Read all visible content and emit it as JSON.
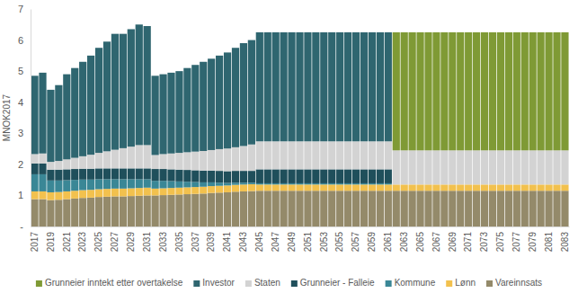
{
  "chart_data": {
    "type": "bar",
    "stacked": true,
    "y_label": "MNOK2017",
    "legend": "bottom",
    "grid": false,
    "ylim": [
      0,
      7
    ],
    "yticks": [
      {
        "value": 0,
        "label": "-"
      },
      1,
      2,
      3,
      4,
      5,
      6,
      7
    ],
    "categories": [
      "2017",
      null,
      "2019",
      null,
      "2021",
      null,
      "2023",
      null,
      "2025",
      null,
      "2027",
      null,
      "2029",
      null,
      "2031",
      null,
      "2033",
      null,
      "2035",
      null,
      "2037",
      null,
      "2039",
      null,
      "2041",
      null,
      "2043",
      null,
      "2045",
      null,
      "2047",
      null,
      "2049",
      null,
      "2051",
      null,
      "2053",
      null,
      "2055",
      null,
      "2057",
      null,
      "2059",
      null,
      "2061",
      null,
      "2063",
      null,
      "2065",
      null,
      "2067",
      null,
      "2069",
      null,
      "2071",
      null,
      "2073",
      null,
      "2075",
      null,
      "2077",
      null,
      "2079",
      null,
      "2081",
      null,
      "2083"
    ],
    "series": [
      {
        "name": "Vareinnsats",
        "color": "#948a6a",
        "values": [
          0.88,
          0.88,
          0.85,
          0.86,
          0.88,
          0.9,
          0.92,
          0.93,
          0.95,
          0.96,
          0.97,
          0.97,
          0.98,
          0.99,
          1.0,
          1.0,
          1.01,
          1.02,
          1.03,
          1.04,
          1.05,
          1.06,
          1.08,
          1.09,
          1.1,
          1.12,
          1.13,
          1.14,
          1.15,
          1.15,
          1.15,
          1.15,
          1.15,
          1.15,
          1.15,
          1.15,
          1.15,
          1.15,
          1.15,
          1.15,
          1.15,
          1.15,
          1.15,
          1.15,
          1.15,
          1.15,
          1.15,
          1.15,
          1.15,
          1.15,
          1.15,
          1.15,
          1.15,
          1.15,
          1.15,
          1.15,
          1.15,
          1.15,
          1.15,
          1.15,
          1.15,
          1.15,
          1.15,
          1.15,
          1.15,
          1.15,
          1.15
        ]
      },
      {
        "name": "Lønn",
        "color": "#f2c14e",
        "values": [
          0.25,
          0.25,
          0.25,
          0.25,
          0.25,
          0.25,
          0.25,
          0.25,
          0.25,
          0.25,
          0.25,
          0.25,
          0.25,
          0.25,
          0.25,
          0.22,
          0.22,
          0.22,
          0.22,
          0.22,
          0.22,
          0.22,
          0.22,
          0.22,
          0.22,
          0.22,
          0.22,
          0.22,
          0.2,
          0.2,
          0.2,
          0.2,
          0.2,
          0.2,
          0.2,
          0.2,
          0.2,
          0.2,
          0.2,
          0.2,
          0.2,
          0.2,
          0.2,
          0.2,
          0.2,
          0.2,
          0.2,
          0.2,
          0.2,
          0.2,
          0.2,
          0.2,
          0.2,
          0.2,
          0.2,
          0.2,
          0.2,
          0.2,
          0.2,
          0.2,
          0.2,
          0.2,
          0.2,
          0.2,
          0.2,
          0.2,
          0.2
        ]
      },
      {
        "name": "Kommune",
        "color": "#3a8796",
        "values": [
          0.55,
          0.55,
          0.38,
          0.37,
          0.36,
          0.35,
          0.34,
          0.33,
          0.32,
          0.31,
          0.3,
          0.3,
          0.29,
          0.28,
          0.27,
          0.25,
          0.24,
          0.22,
          0.2,
          0.18,
          0.16,
          0.14,
          0.12,
          0.1,
          0.08,
          0.07,
          0.06,
          0.05,
          0.04,
          0.04,
          0.04,
          0.04,
          0.04,
          0.04,
          0.04,
          0.04,
          0.04,
          0.04,
          0.04,
          0.04,
          0.04,
          0.04,
          0.04,
          0.04,
          0.04,
          0,
          0,
          0,
          0,
          0,
          0,
          0,
          0,
          0,
          0,
          0,
          0,
          0,
          0,
          0,
          0,
          0,
          0,
          0,
          0,
          0,
          0
        ]
      },
      {
        "name": "Grunneier - Falleie",
        "color": "#1f4f5b",
        "values": [
          0.35,
          0.35,
          0.35,
          0.35,
          0.35,
          0.35,
          0.35,
          0.35,
          0.35,
          0.35,
          0.35,
          0.35,
          0.35,
          0.35,
          0.35,
          0.38,
          0.38,
          0.38,
          0.38,
          0.38,
          0.38,
          0.38,
          0.38,
          0.38,
          0.38,
          0.38,
          0.38,
          0.38,
          0.45,
          0.45,
          0.45,
          0.45,
          0.45,
          0.45,
          0.45,
          0.45,
          0.45,
          0.45,
          0.45,
          0.45,
          0.45,
          0.45,
          0.45,
          0.45,
          0.45,
          0,
          0,
          0,
          0,
          0,
          0,
          0,
          0,
          0,
          0,
          0,
          0,
          0,
          0,
          0,
          0,
          0,
          0,
          0,
          0,
          0,
          0
        ]
      },
      {
        "name": "Staten",
        "color": "#d3d3d3",
        "values": [
          0.3,
          0.32,
          0.25,
          0.28,
          0.32,
          0.36,
          0.4,
          0.45,
          0.5,
          0.55,
          0.6,
          0.65,
          0.7,
          0.75,
          0.75,
          0.45,
          0.48,
          0.51,
          0.54,
          0.57,
          0.6,
          0.63,
          0.66,
          0.7,
          0.73,
          0.76,
          0.8,
          0.85,
          0.9,
          0.9,
          0.9,
          0.9,
          0.9,
          0.9,
          0.9,
          0.9,
          0.9,
          0.9,
          0.9,
          0.9,
          0.9,
          0.9,
          0.9,
          0.9,
          0.9,
          1.1,
          1.1,
          1.1,
          1.1,
          1.1,
          1.1,
          1.1,
          1.1,
          1.1,
          1.1,
          1.1,
          1.1,
          1.1,
          1.1,
          1.1,
          1.1,
          1.1,
          1.1,
          1.1,
          1.1,
          1.1,
          1.1
        ]
      },
      {
        "name": "Investor",
        "color": "#2f6670",
        "values": [
          2.52,
          2.6,
          2.32,
          2.44,
          2.74,
          2.89,
          3.04,
          3.19,
          3.38,
          3.53,
          3.73,
          3.68,
          3.78,
          3.88,
          3.83,
          2.55,
          2.57,
          2.6,
          2.63,
          2.71,
          2.79,
          2.87,
          2.94,
          3.01,
          3.09,
          3.2,
          3.31,
          3.36,
          3.51,
          3.51,
          3.51,
          3.51,
          3.51,
          3.51,
          3.51,
          3.51,
          3.51,
          3.51,
          3.51,
          3.51,
          3.51,
          3.51,
          3.51,
          3.51,
          3.51,
          0,
          0,
          0,
          0,
          0,
          0,
          0,
          0,
          0,
          0,
          0,
          0,
          0,
          0,
          0,
          0,
          0,
          0,
          0,
          0,
          0,
          0
        ]
      },
      {
        "name": "Grunneier inntekt etter overtakelse",
        "color": "#7f9a35",
        "values": [
          0,
          0,
          0,
          0,
          0,
          0,
          0,
          0,
          0,
          0,
          0,
          0,
          0,
          0,
          0,
          0,
          0,
          0,
          0,
          0,
          0,
          0,
          0,
          0,
          0,
          0,
          0,
          0,
          0,
          0,
          0,
          0,
          0,
          0,
          0,
          0,
          0,
          0,
          0,
          0,
          0,
          0,
          0,
          0,
          0,
          3.8,
          3.8,
          3.8,
          3.8,
          3.8,
          3.8,
          3.8,
          3.8,
          3.8,
          3.8,
          3.8,
          3.8,
          3.8,
          3.8,
          3.8,
          3.8,
          3.8,
          3.8,
          3.8,
          3.8,
          3.8,
          3.8
        ]
      }
    ]
  }
}
